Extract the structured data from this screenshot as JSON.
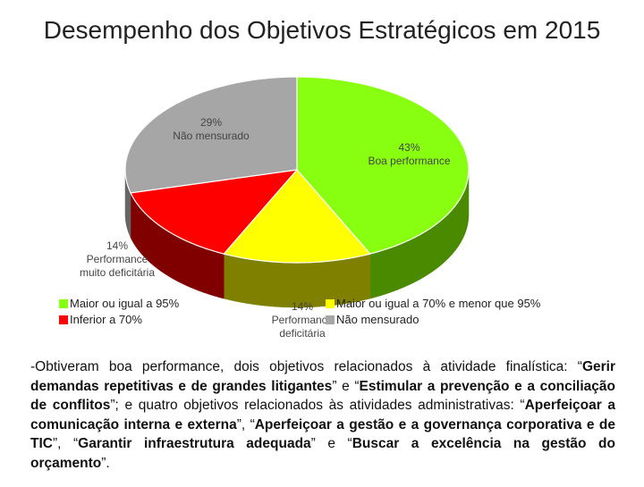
{
  "title": "Desempenho dos Objetivos Estratégicos em 2015",
  "chart_data": {
    "type": "pie",
    "title": "Desempenho dos Objetivos Estratégicos em 2015",
    "slices": [
      {
        "legend": "Maior ou igual a 95%",
        "value": 43,
        "label_pct": "43%",
        "label_text": "Boa performance",
        "color": "#88ff11",
        "side": "#4a8a00"
      },
      {
        "legend": "Maior ou igual a 70% e menor que 95%",
        "value": 14,
        "label_pct": "14%",
        "label_text": "Performance deficitária",
        "color": "#ffff00",
        "side": "#808000"
      },
      {
        "legend": "Inferior a 70%",
        "value": 14,
        "label_pct": "14%",
        "label_text": "Performance muito deficitária",
        "color": "#ff0000",
        "side": "#800000"
      },
      {
        "legend": "Não mensurado",
        "value": 29,
        "label_pct": "29%",
        "label_text": "Não mensurado",
        "color": "#a6a6a6",
        "side": "#666666"
      }
    ]
  },
  "labels": {
    "boa_pct": "43%",
    "boa_text": "Boa performance",
    "nao_pct": "29%",
    "nao_text": "Não mensurado",
    "muito_pct": "14%",
    "muito_text1": "Performance",
    "muito_text2": "muito deficitária",
    "def_pct": "14%",
    "def_text1": "Performance",
    "def_text2": "deficitária"
  },
  "legend": {
    "item1": "Maior ou igual a 95%",
    "item2": "Inferior a 70%",
    "item3": "Maior ou igual a 70% e menor que 95%",
    "item4": "Não mensurado"
  },
  "body": {
    "p1": "-Obtiveram boa performance, dois objetivos relacionados à atividade finalística: “",
    "b1": "Gerir demandas repetitivas e de grandes litigantes",
    "p2": "” e “",
    "b2": "Estimular a prevenção e a conciliação de conflitos",
    "p3": "”; e quatro objetivos relacionados às atividades administrativas: “",
    "b3": "Aperfeiçoar a comunicação interna e externa",
    "p4": "”, “",
    "b4": "Aperfeiçoar a gestão e a governança corporativa e de TIC",
    "p5": "”, “",
    "b5": "Garantir infraestrutura adequada",
    "p6": "” e “",
    "b6": "Buscar a excelência na gestão do orçamento",
    "p7": "”."
  }
}
